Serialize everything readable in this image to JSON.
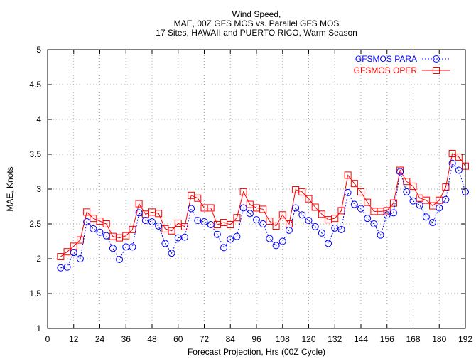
{
  "chart_data": {
    "type": "line",
    "title_lines": [
      "Wind Speed,",
      "MAE, 00Z GFS MOS vs. Parallel GFS MOS",
      "17 Sites, HAWAII and PUERTO RICO, Warm Season"
    ],
    "xlabel": "Forecast Projection, Hrs (00Z Cycle)",
    "ylabel": "MAE, Knots",
    "xlim": [
      0,
      192
    ],
    "ylim": [
      1,
      5
    ],
    "xticks": [
      "0",
      "12",
      "24",
      "36",
      "48",
      "60",
      "72",
      "84",
      "96",
      "108",
      "120",
      "132",
      "144",
      "156",
      "168",
      "180",
      "192"
    ],
    "yticks": [
      "1",
      "1.5",
      "2",
      "2.5",
      "3",
      "3.5",
      "4",
      "4.5",
      "5"
    ],
    "grid": true,
    "legend_position": "top-right",
    "x": [
      6,
      9,
      12,
      15,
      18,
      21,
      24,
      27,
      30,
      33,
      36,
      39,
      42,
      45,
      48,
      51,
      54,
      57,
      60,
      63,
      66,
      69,
      72,
      75,
      78,
      81,
      84,
      87,
      90,
      93,
      96,
      99,
      102,
      105,
      108,
      111,
      114,
      117,
      120,
      123,
      126,
      129,
      132,
      135,
      138,
      141,
      144,
      147,
      150,
      153,
      156,
      159,
      162,
      165,
      168,
      171,
      174,
      177,
      180,
      183,
      186,
      189,
      192
    ],
    "series": [
      {
        "name": "GFSMOS PARA",
        "color": "#0000ff",
        "marker": "circle",
        "line": "dotted",
        "values": [
          1.87,
          1.88,
          2.09,
          2.0,
          2.53,
          2.43,
          2.38,
          2.33,
          2.15,
          1.99,
          2.17,
          2.17,
          2.66,
          2.55,
          2.53,
          2.47,
          2.22,
          2.08,
          2.3,
          2.31,
          2.72,
          2.55,
          2.53,
          2.49,
          2.35,
          2.16,
          2.28,
          2.32,
          2.73,
          2.65,
          2.56,
          2.5,
          2.29,
          2.19,
          2.25,
          2.41,
          2.73,
          2.63,
          2.55,
          2.46,
          2.37,
          2.22,
          2.44,
          2.42,
          2.95,
          2.78,
          2.72,
          2.58,
          2.5,
          2.34,
          2.63,
          2.66,
          3.25,
          2.96,
          2.83,
          2.77,
          2.6,
          2.52,
          2.73,
          2.85,
          3.37,
          3.27,
          2.96
        ]
      },
      {
        "name": "GFSMOS OPER",
        "color": "#ff0000",
        "marker": "square",
        "line": "solid",
        "values": [
          2.03,
          2.1,
          2.18,
          2.27,
          2.67,
          2.58,
          2.54,
          2.5,
          2.32,
          2.3,
          2.33,
          2.42,
          2.79,
          2.64,
          2.67,
          2.65,
          2.43,
          2.4,
          2.51,
          2.46,
          2.91,
          2.87,
          2.73,
          2.73,
          2.49,
          2.52,
          2.49,
          2.59,
          2.96,
          2.78,
          2.73,
          2.71,
          2.54,
          2.47,
          2.63,
          2.5,
          2.99,
          2.96,
          2.86,
          2.74,
          2.64,
          2.56,
          2.58,
          2.69,
          3.2,
          3.08,
          2.96,
          2.81,
          2.68,
          2.68,
          2.69,
          2.8,
          3.27,
          3.11,
          3.04,
          2.87,
          2.84,
          2.76,
          2.84,
          3.03,
          3.51,
          3.46,
          3.33
        ]
      }
    ]
  }
}
